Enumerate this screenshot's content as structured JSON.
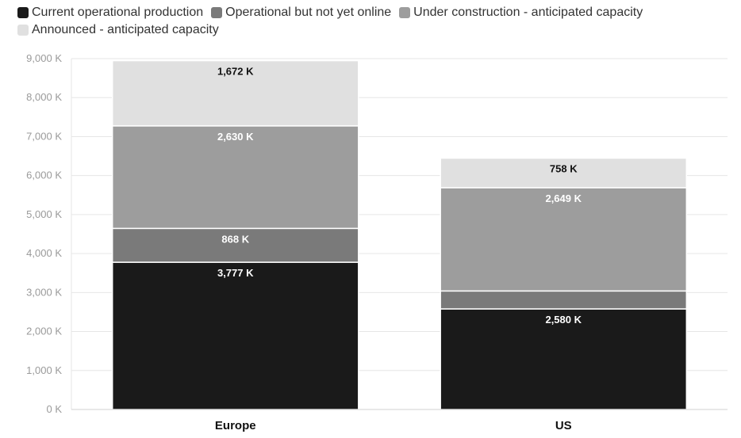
{
  "chart_data": {
    "type": "bar",
    "stacked": true,
    "categories": [
      "Europe",
      "US"
    ],
    "series": [
      {
        "name": "Current operational production",
        "color": "#1a1a1a",
        "label_color": "#ffffff",
        "values": [
          3777,
          2580
        ],
        "labels": [
          "3,777 K",
          "2,580 K"
        ]
      },
      {
        "name": "Operational but not yet online",
        "color": "#7a7a7a",
        "label_color": "#ffffff",
        "values": [
          868,
          460
        ],
        "labels": [
          "868 K",
          ""
        ]
      },
      {
        "name": "Under construction - anticipated capacity",
        "color": "#9d9d9d",
        "label_color": "#ffffff",
        "values": [
          2630,
          2649
        ],
        "labels": [
          "2,630 K",
          "2,649 K"
        ]
      },
      {
        "name": "Announced - anticipated capacity",
        "color": "#e0e0e0",
        "label_color": "#111111",
        "values": [
          1672,
          758
        ],
        "labels": [
          "1,672 K",
          "758 K"
        ]
      }
    ],
    "ylim": [
      0,
      9000
    ],
    "yticks": [
      0,
      1000,
      2000,
      3000,
      4000,
      5000,
      6000,
      7000,
      8000,
      9000
    ],
    "ytick_labels": [
      "0 K",
      "1,000 K",
      "2,000 K",
      "3,000 K",
      "4,000 K",
      "5,000 K",
      "6,000 K",
      "7,000 K",
      "8,000 K",
      "9,000 K"
    ],
    "grid": true,
    "legend": "top-left"
  }
}
